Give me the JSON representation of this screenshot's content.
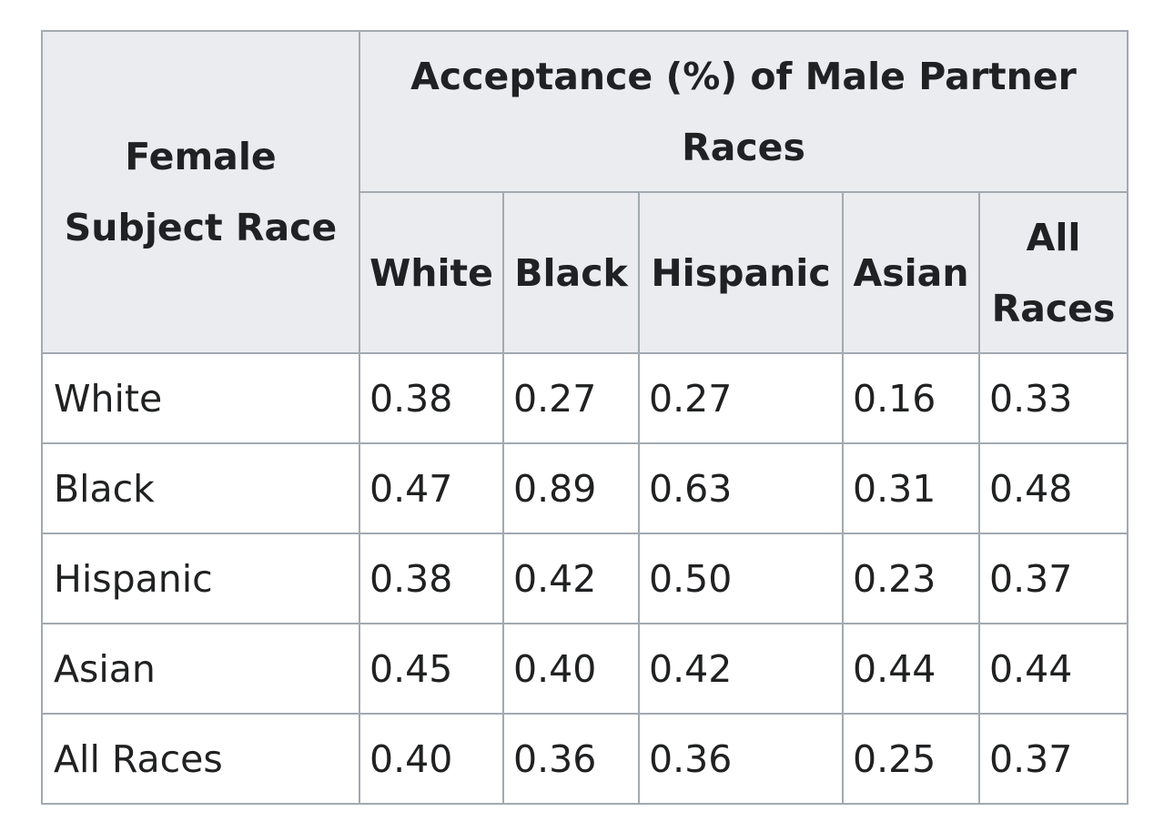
{
  "table": {
    "corner_header": "Female Subject Race",
    "group_header": "Acceptance (%) of Male Partner Races",
    "columns": [
      "White",
      "Black",
      "Hispanic",
      "Asian",
      "All Races"
    ],
    "rows": [
      {
        "label": "White",
        "values": [
          "0.38",
          "0.27",
          "0.27",
          "0.16",
          "0.33"
        ]
      },
      {
        "label": "Black",
        "values": [
          "0.47",
          "0.89",
          "0.63",
          "0.31",
          "0.48"
        ]
      },
      {
        "label": "Hispanic",
        "values": [
          "0.38",
          "0.42",
          "0.50",
          "0.23",
          "0.37"
        ]
      },
      {
        "label": "Asian",
        "values": [
          "0.45",
          "0.40",
          "0.42",
          "0.44",
          "0.44"
        ]
      },
      {
        "label": "All Races",
        "values": [
          "0.40",
          "0.36",
          "0.36",
          "0.25",
          "0.37"
        ]
      }
    ]
  },
  "colors": {
    "header_background": "#eaecf0",
    "border": "#a2a9b1",
    "text": "#202122"
  }
}
